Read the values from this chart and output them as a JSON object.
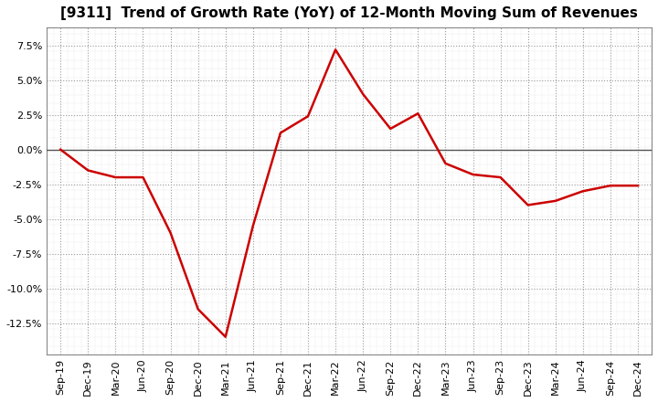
{
  "title": "[9311]  Trend of Growth Rate (YoY) of 12-Month Moving Sum of Revenues",
  "line_color": "#cc0000",
  "background_color": "#ffffff",
  "plot_bg_color": "#ffffff",
  "grid_color": "#999999",
  "minor_grid_color": "#cccccc",
  "zero_line_color": "#555555",
  "ylim": [
    -0.148,
    0.088
  ],
  "yticks": [
    -0.125,
    -0.1,
    -0.075,
    -0.05,
    -0.025,
    0.0,
    0.025,
    0.05,
    0.075
  ],
  "values": [
    0.0,
    -0.015,
    -0.02,
    -0.02,
    -0.06,
    -0.115,
    -0.135,
    -0.055,
    0.012,
    0.024,
    0.072,
    0.04,
    0.015,
    0.026,
    -0.01,
    -0.018,
    -0.02,
    -0.04,
    -0.037,
    -0.03,
    -0.026,
    -0.026
  ],
  "xtick_labels": [
    "Sep-19",
    "Dec-19",
    "Mar-20",
    "Jun-20",
    "Sep-20",
    "Dec-20",
    "Mar-21",
    "Jun-21",
    "Sep-21",
    "Dec-21",
    "Mar-22",
    "Jun-22",
    "Sep-22",
    "Dec-22",
    "Mar-23",
    "Jun-23",
    "Sep-23",
    "Dec-23",
    "Mar-24",
    "Jun-24",
    "Sep-24",
    "Dec-24"
  ],
  "title_fontsize": 11,
  "tick_fontsize": 8,
  "line_width": 1.8,
  "spine_color": "#888888"
}
